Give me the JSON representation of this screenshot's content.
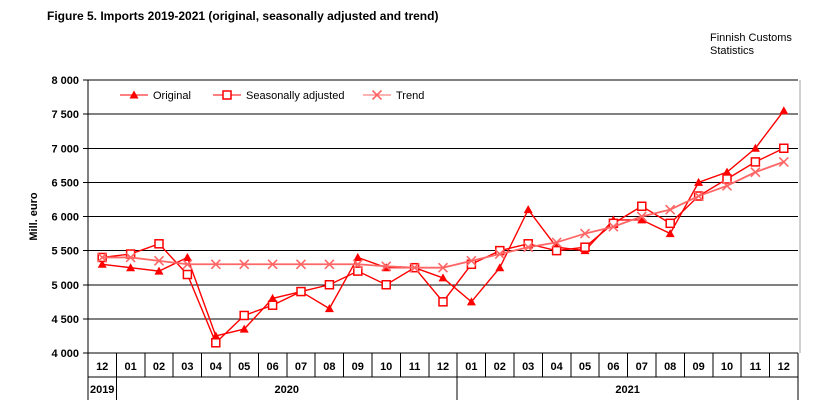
{
  "title": "Figure 5. Imports 2019-2021 (original, seasonally adjusted and trend)",
  "source": {
    "line1": "Finnish Customs",
    "line2": "Statistics"
  },
  "chart_data": {
    "type": "line",
    "title": "Figure 5. Imports 2019-2021 (original, seasonally adjusted and trend)",
    "xlabel": "",
    "ylabel": "Mill. euro",
    "ylim": [
      4000,
      8000
    ],
    "ytick_step": 500,
    "grid": true,
    "legend_position": "top-inside",
    "categories": [
      "12",
      "01",
      "02",
      "03",
      "04",
      "05",
      "06",
      "07",
      "08",
      "09",
      "10",
      "11",
      "12",
      "01",
      "02",
      "03",
      "04",
      "05",
      "06",
      "07",
      "08",
      "09",
      "10",
      "11",
      "12"
    ],
    "year_groups": [
      {
        "label": "2019",
        "cells": 1
      },
      {
        "label": "2020",
        "cells": 12
      },
      {
        "label": "2021",
        "cells": 12
      }
    ],
    "series": [
      {
        "name": "Original",
        "marker": "triangle",
        "color": "#fe0000",
        "values": [
          5300,
          5250,
          5200,
          5400,
          4250,
          4350,
          4800,
          4900,
          4650,
          5400,
          5250,
          5250,
          5100,
          4750,
          5250,
          6100,
          5550,
          5500,
          5950,
          5950,
          5750,
          6500,
          6650,
          7000,
          7550
        ]
      },
      {
        "name": "Seasonally adjusted",
        "marker": "square",
        "color": "#fe0000",
        "values": [
          5400,
          5450,
          5600,
          5150,
          4150,
          4550,
          4700,
          4900,
          5000,
          5200,
          5000,
          5250,
          4750,
          5300,
          5500,
          5600,
          5500,
          5550,
          5900,
          6150,
          5900,
          6300,
          6550,
          6800,
          7000
        ]
      },
      {
        "name": "Trend",
        "marker": "x",
        "color": "#ff6666",
        "values": [
          5400,
          5400,
          5350,
          5300,
          5300,
          5300,
          5300,
          5300,
          5300,
          5300,
          5270,
          5250,
          5250,
          5350,
          5450,
          5550,
          5620,
          5750,
          5850,
          6000,
          6100,
          6300,
          6450,
          6650,
          6800
        ]
      }
    ]
  }
}
